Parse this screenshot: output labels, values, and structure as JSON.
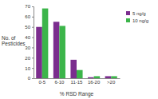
{
  "chart_data": {
    "type": "bar",
    "x_label": "% RSD Range",
    "y_label": "No. of Pesticides",
    "categories": [
      "0-5",
      "6-10",
      "11-15",
      "16-20",
      ">20"
    ],
    "series": [
      {
        "name": "5 ng/g",
        "color": "#7b2d8e",
        "values": [
          50,
          55,
          18,
          1,
          2
        ]
      },
      {
        "name": "10 ng/g",
        "color": "#3cb54a",
        "values": [
          68,
          51,
          8,
          2,
          2
        ]
      }
    ],
    "ylim": [
      0,
      70
    ],
    "yticks": [
      0,
      10,
      20,
      30,
      40,
      50,
      60,
      70
    ],
    "grid": false,
    "legend": "right"
  }
}
